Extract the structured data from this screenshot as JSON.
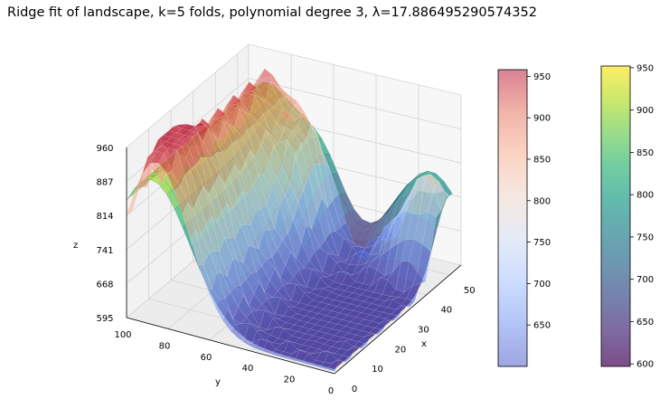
{
  "chart_data": {
    "type": "surface3d",
    "title": "Ridge fit of landscape, k=5 folds, polynomial degree 3, λ=17.886495290574352",
    "xlabel": "x",
    "ylabel": "y",
    "zlabel": "z",
    "xlim": [
      0,
      55
    ],
    "ylim": [
      0,
      100
    ],
    "zlim": [
      595,
      960
    ],
    "x_ticks": [
      "0",
      "10",
      "20",
      "30",
      "40",
      "50"
    ],
    "y_ticks": [
      "100",
      "80",
      "60",
      "40",
      "20",
      "0"
    ],
    "z_ticks": [
      "960",
      "887",
      "814",
      "741",
      "668",
      "595"
    ],
    "grid": true,
    "surfaces": [
      {
        "role": "landscape",
        "colormap": "coolwarm",
        "alpha": 0.5,
        "z_range": [
          600,
          958
        ]
      },
      {
        "role": "ridge fit",
        "colormap": "viridis",
        "alpha": 0.7,
        "z_range": [
          597,
          952
        ]
      }
    ],
    "colorbars": [
      {
        "colormap": "coolwarm",
        "ticks": [
          "650",
          "700",
          "750",
          "800",
          "850",
          "900",
          "950"
        ],
        "range": [
          600,
          958
        ]
      },
      {
        "colormap": "viridis",
        "ticks": [
          "600",
          "650",
          "700",
          "750",
          "800",
          "850",
          "900",
          "950"
        ],
        "range": [
          597,
          952
        ]
      }
    ],
    "colors": {
      "coolwarm": [
        "#3b4cc0",
        "#6788ee",
        "#9abbff",
        "#c9d7f0",
        "#edd1c2",
        "#f7a889",
        "#e26952",
        "#b40426"
      ],
      "viridis": [
        "#440154",
        "#482878",
        "#3e4989",
        "#31688e",
        "#26828e",
        "#1f9e89",
        "#35b779",
        "#6ece58",
        "#b5de2b",
        "#fde725"
      ]
    }
  }
}
